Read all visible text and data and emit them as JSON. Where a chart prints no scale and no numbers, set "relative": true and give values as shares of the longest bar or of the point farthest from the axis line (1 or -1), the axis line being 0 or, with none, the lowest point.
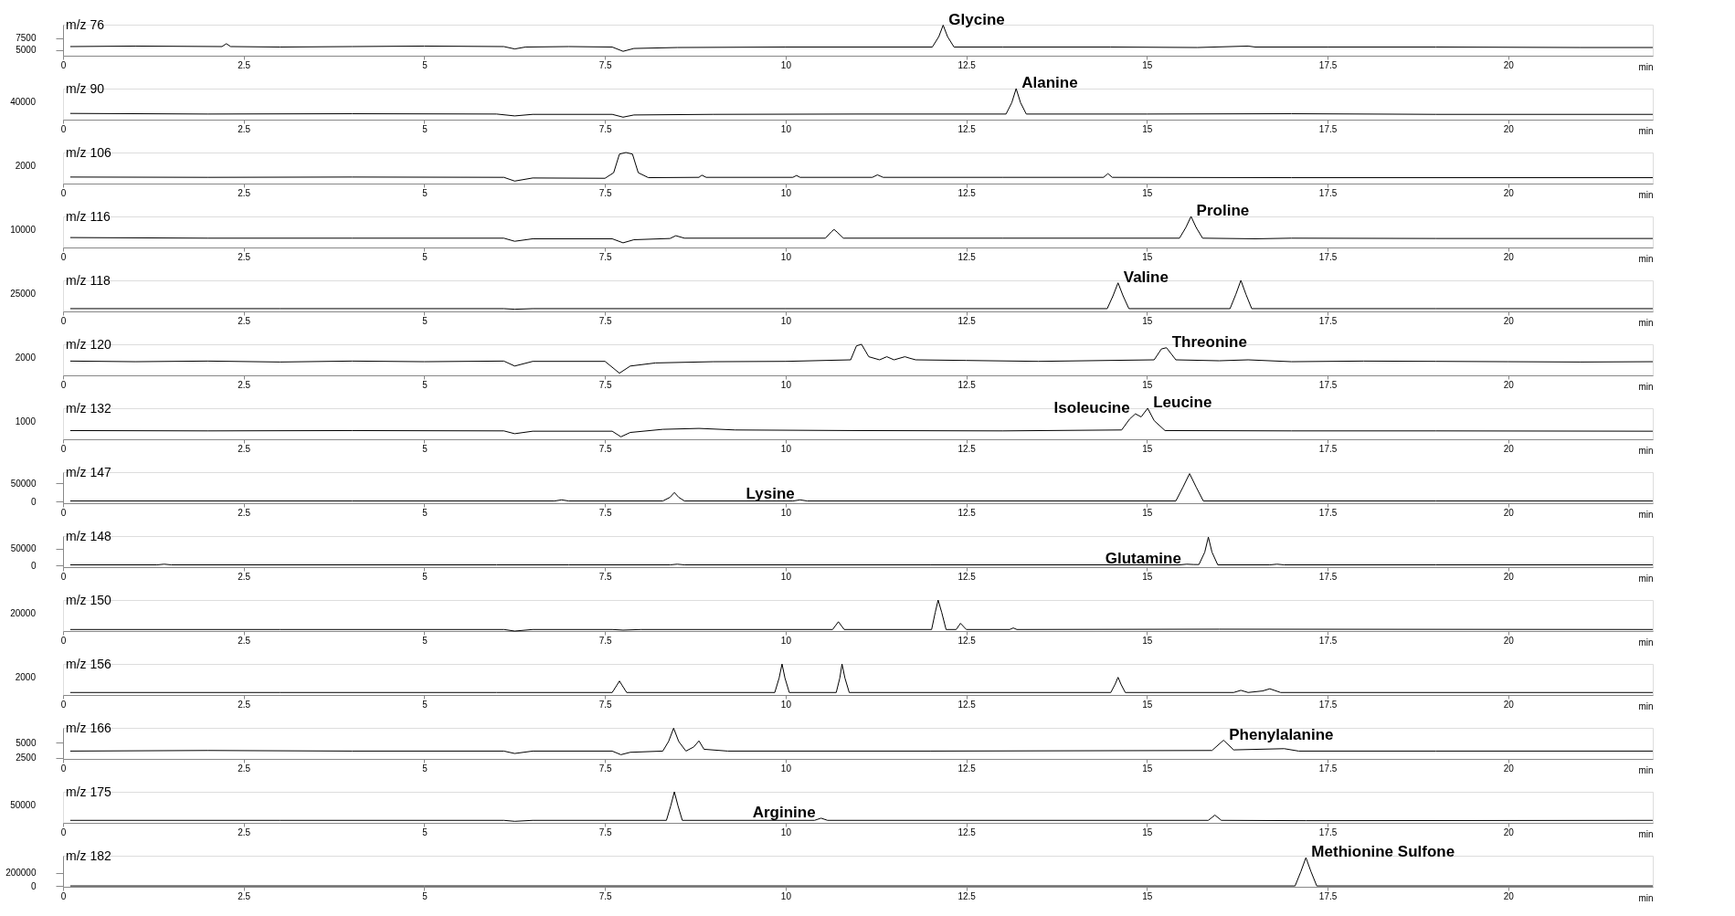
{
  "chart_data": [
    {
      "type": "line",
      "title": "m/z 76",
      "xlabel": "min",
      "color": "#000000",
      "xlim": [
        0,
        22
      ],
      "xticks": [
        0,
        2.5,
        5,
        7.5,
        10,
        12.5,
        15,
        17.5,
        20
      ],
      "ylim": [
        3780,
        10300
      ],
      "yticks": [
        5000,
        7500
      ],
      "x": [
        0.1,
        1,
        2.2,
        2.26,
        2.32,
        3,
        4,
        5,
        6.1,
        6.25,
        6.4,
        7,
        7.6,
        7.75,
        7.9,
        8.5,
        10,
        12.03,
        12.12,
        12.18,
        12.24,
        12.33,
        13,
        14.5,
        15.7,
        16.4,
        16.5,
        17.5,
        19,
        21,
        22
      ],
      "values": [
        5700,
        5800,
        5700,
        6300,
        5700,
        5600,
        5700,
        5800,
        5700,
        5200,
        5600,
        5700,
        5600,
        4700,
        5300,
        5500,
        5600,
        5600,
        7800,
        10200,
        7800,
        5600,
        5600,
        5600,
        5500,
        5800,
        5600,
        5600,
        5600,
        5500,
        5500
      ],
      "annotations": [
        {
          "text": "Glycine",
          "x": 12.18,
          "y": 10200
        }
      ]
    },
    {
      "type": "line",
      "title": "m/z 90",
      "xlabel": "min",
      "color": "#000000",
      "xlim": [
        0,
        22
      ],
      "xticks": [
        0,
        2.5,
        5,
        7.5,
        10,
        12.5,
        15,
        17.5,
        20
      ],
      "relative": true,
      "x": [
        0.1,
        2,
        4,
        6,
        6.25,
        6.5,
        7.6,
        7.75,
        7.9,
        9,
        11,
        13.05,
        13.13,
        13.19,
        13.25,
        13.33,
        15,
        17,
        19,
        22
      ],
      "values": [
        0.2,
        0.18,
        0.19,
        0.18,
        0.12,
        0.17,
        0.17,
        0.08,
        0.15,
        0.17,
        0.18,
        0.18,
        0.55,
        1.0,
        0.55,
        0.18,
        0.18,
        0.19,
        0.17,
        0.17
      ],
      "annotations": [
        "40000",
        {
          "text": "Alanine",
          "x": 13.19,
          "y": 1.0
        }
      ]
    },
    {
      "type": "line",
      "title": "m/z 106",
      "xlabel": "min",
      "color": "#000000",
      "xlim": [
        0,
        22
      ],
      "xticks": [
        0,
        2.5,
        5,
        7.5,
        10,
        12.5,
        15,
        17.5,
        20
      ],
      "relative": true,
      "x": [
        0.1,
        2,
        4,
        6.1,
        6.25,
        6.5,
        7.5,
        7.62,
        7.7,
        7.79,
        7.88,
        7.96,
        8.1,
        8.8,
        8.84,
        8.9,
        10.1,
        10.15,
        10.2,
        11.2,
        11.27,
        11.35,
        13,
        14.4,
        14.46,
        14.52,
        17,
        22
      ],
      "values": [
        0.21,
        0.2,
        0.21,
        0.2,
        0.08,
        0.18,
        0.17,
        0.35,
        0.95,
        1.0,
        0.95,
        0.35,
        0.19,
        0.2,
        0.27,
        0.2,
        0.2,
        0.26,
        0.2,
        0.2,
        0.28,
        0.2,
        0.2,
        0.2,
        0.32,
        0.2,
        0.19,
        0.19
      ],
      "annotations": [
        "2000"
      ]
    },
    {
      "type": "line",
      "title": "m/z 116",
      "xlabel": "min",
      "color": "#000000",
      "xlim": [
        0,
        22
      ],
      "xticks": [
        0,
        2.5,
        5,
        7.5,
        10,
        12.5,
        15,
        17.5,
        20
      ],
      "relative": true,
      "x": [
        0.1,
        2,
        4,
        6.1,
        6.25,
        6.5,
        7.6,
        7.75,
        7.9,
        8.4,
        8.48,
        8.6,
        10.55,
        10.63,
        10.67,
        10.71,
        10.8,
        13,
        15.45,
        15.54,
        15.61,
        15.68,
        15.77,
        16.5,
        17,
        19,
        22
      ],
      "values": [
        0.32,
        0.3,
        0.3,
        0.3,
        0.2,
        0.28,
        0.28,
        0.15,
        0.25,
        0.29,
        0.38,
        0.3,
        0.3,
        0.5,
        0.58,
        0.5,
        0.3,
        0.3,
        0.3,
        0.65,
        1.0,
        0.65,
        0.3,
        0.28,
        0.3,
        0.29,
        0.29
      ],
      "annotations": [
        "10000",
        {
          "text": "Proline",
          "x": 15.61,
          "y": 1.0
        }
      ]
    },
    {
      "type": "line",
      "title": "m/z 118",
      "xlabel": "min",
      "color": "#000000",
      "xlim": [
        0,
        22
      ],
      "xticks": [
        0,
        2.5,
        5,
        7.5,
        10,
        12.5,
        15,
        17.5,
        20
      ],
      "relative": true,
      "x": [
        0.1,
        3,
        6.1,
        6.25,
        6.5,
        10,
        14.45,
        14.53,
        14.6,
        14.67,
        14.75,
        16.15,
        16.23,
        16.3,
        16.37,
        16.45,
        19,
        22
      ],
      "values": [
        0.09,
        0.09,
        0.09,
        0.07,
        0.09,
        0.09,
        0.09,
        0.5,
        0.92,
        0.5,
        0.09,
        0.09,
        0.55,
        1.0,
        0.55,
        0.09,
        0.09,
        0.09
      ],
      "annotations": [
        "25000",
        {
          "text": "Valine",
          "x": 14.6,
          "y": 0.92
        }
      ]
    },
    {
      "type": "line",
      "title": "m/z 120",
      "xlabel": "min",
      "color": "#000000",
      "xlim": [
        0,
        22
      ],
      "xticks": [
        0,
        2.5,
        5,
        7.5,
        10,
        12.5,
        15,
        17.5,
        20
      ],
      "relative": true,
      "x": [
        0.1,
        1,
        2,
        3,
        4,
        5,
        6.1,
        6.25,
        6.5,
        7.5,
        7.7,
        7.85,
        8.2,
        9,
        10,
        10.9,
        10.98,
        11.05,
        11.15,
        11.3,
        11.4,
        11.5,
        11.65,
        11.72,
        11.8,
        12.5,
        13.5,
        15.1,
        15.2,
        15.27,
        15.4,
        16,
        16.4,
        17,
        18,
        19,
        20,
        21,
        22
      ],
      "values": [
        0.46,
        0.44,
        0.46,
        0.43,
        0.46,
        0.44,
        0.46,
        0.3,
        0.45,
        0.45,
        0.07,
        0.3,
        0.4,
        0.44,
        0.45,
        0.5,
        0.95,
        1.0,
        0.6,
        0.5,
        0.6,
        0.5,
        0.6,
        0.55,
        0.5,
        0.48,
        0.45,
        0.5,
        0.85,
        0.89,
        0.5,
        0.47,
        0.5,
        0.44,
        0.46,
        0.45,
        0.44,
        0.43,
        0.44
      ],
      "annotations": [
        "2000",
        {
          "text": "Threonine",
          "x": 15.27,
          "y": 0.89
        }
      ]
    },
    {
      "type": "line",
      "title": "m/z 132",
      "xlabel": "min",
      "color": "#000000",
      "xlim": [
        0,
        22
      ],
      "xticks": [
        0,
        2.5,
        5,
        7.5,
        10,
        12.5,
        15,
        17.5,
        20
      ],
      "relative": true,
      "x": [
        0.1,
        2,
        4,
        6.1,
        6.25,
        6.5,
        7.6,
        7.72,
        7.85,
        8.3,
        8.8,
        9.3,
        11,
        13,
        14.65,
        14.76,
        14.84,
        14.92,
        15.01,
        15.1,
        15.25,
        17,
        19,
        22
      ],
      "values": [
        0.28,
        0.27,
        0.28,
        0.27,
        0.18,
        0.26,
        0.26,
        0.08,
        0.22,
        0.32,
        0.35,
        0.3,
        0.28,
        0.27,
        0.3,
        0.65,
        0.82,
        0.72,
        1.0,
        0.6,
        0.28,
        0.27,
        0.27,
        0.26
      ],
      "annotations": [
        "1000",
        {
          "text": "Isoleucine",
          "x": 14.84,
          "y": 0.82
        },
        {
          "text": "Leucine",
          "x": 15.01,
          "y": 1.0
        }
      ]
    },
    {
      "type": "line",
      "title": "m/z 147",
      "xlabel": "min",
      "color": "#000000",
      "xlim": [
        0,
        22
      ],
      "xticks": [
        0,
        2.5,
        5,
        7.5,
        10,
        12.5,
        15,
        17.5,
        20
      ],
      "ylim": [
        -4000,
        80000
      ],
      "yticks": [
        0,
        50000
      ],
      "x": [
        0.1,
        4,
        6.8,
        6.9,
        7.0,
        8.3,
        8.4,
        8.46,
        8.52,
        8.6,
        10.1,
        10.2,
        10.3,
        15.4,
        15.5,
        15.59,
        15.68,
        15.78,
        19,
        22
      ],
      "values": [
        2000,
        2000,
        2000,
        5000,
        2000,
        2000,
        12000,
        25000,
        12000,
        2000,
        2000,
        5000,
        2000,
        2000,
        40000,
        76000,
        40000,
        2000,
        2000,
        2000
      ],
      "annotations": [
        {
          "text": "Lysine",
          "x": 10.2,
          "y": 5000
        }
      ]
    },
    {
      "type": "line",
      "title": "m/z 148",
      "xlabel": "min",
      "color": "#000000",
      "xlim": [
        0,
        22
      ],
      "xticks": [
        0,
        2.5,
        5,
        7.5,
        10,
        12.5,
        15,
        17.5,
        20
      ],
      "ylim": [
        -4800,
        88000
      ],
      "yticks": [
        0,
        50000
      ],
      "x": [
        0.1,
        1.3,
        1.4,
        1.5,
        6,
        7,
        8.4,
        8.5,
        8.6,
        12,
        15.45,
        15.55,
        15.65,
        15.72,
        15.8,
        15.85,
        15.9,
        15.98,
        16.7,
        16.8,
        16.9,
        19,
        22
      ],
      "values": [
        2000,
        2000,
        4000,
        2000,
        2000,
        2000,
        2000,
        4000,
        2000,
        2000,
        2000,
        4000,
        3000,
        3000,
        40000,
        85000,
        40000,
        2000,
        2000,
        4000,
        2000,
        2000,
        2000
      ],
      "annotations": [
        {
          "text": "Glutamine",
          "x": 15.55,
          "y": 4000
        }
      ]
    },
    {
      "type": "line",
      "title": "m/z 150",
      "xlabel": "min",
      "color": "#000000",
      "xlim": [
        0,
        22
      ],
      "xticks": [
        0,
        2.5,
        5,
        7.5,
        10,
        12.5,
        15,
        17.5,
        20
      ],
      "relative": true,
      "x": [
        0.1,
        3,
        6.1,
        6.25,
        6.5,
        7.6,
        7.75,
        8,
        10.65,
        10.73,
        10.81,
        12.02,
        12.07,
        12.11,
        12.16,
        12.22,
        12.36,
        12.42,
        12.5,
        13.1,
        13.15,
        13.2,
        16,
        22
      ],
      "values": [
        0.05,
        0.05,
        0.05,
        0.0,
        0.05,
        0.05,
        0.03,
        0.05,
        0.05,
        0.3,
        0.05,
        0.05,
        0.6,
        1.0,
        0.6,
        0.05,
        0.05,
        0.25,
        0.05,
        0.05,
        0.1,
        0.05,
        0.06,
        0.05
      ],
      "annotations": [
        "20000"
      ]
    },
    {
      "type": "line",
      "title": "m/z 156",
      "xlabel": "min",
      "color": "#000000",
      "xlim": [
        0,
        22
      ],
      "xticks": [
        0,
        2.5,
        5,
        7.5,
        10,
        12.5,
        15,
        17.5,
        20
      ],
      "relative": true,
      "x": [
        0.1,
        3,
        6,
        7.6,
        7.66,
        7.7,
        7.74,
        7.8,
        9.85,
        9.91,
        9.95,
        9.99,
        10.05,
        10.7,
        10.75,
        10.78,
        10.82,
        10.88,
        14.5,
        14.56,
        14.6,
        14.64,
        14.7,
        16.2,
        16.3,
        16.4,
        16.6,
        16.7,
        16.85,
        22
      ],
      "values": [
        0.08,
        0.08,
        0.08,
        0.08,
        0.3,
        0.45,
        0.3,
        0.08,
        0.08,
        0.55,
        1.0,
        0.55,
        0.08,
        0.08,
        0.55,
        1.0,
        0.55,
        0.08,
        0.08,
        0.35,
        0.57,
        0.35,
        0.08,
        0.08,
        0.15,
        0.08,
        0.13,
        0.2,
        0.08,
        0.08
      ],
      "annotations": [
        "2000"
      ]
    },
    {
      "type": "line",
      "title": "m/z 166",
      "xlabel": "min",
      "color": "#000000",
      "xlim": [
        0,
        22
      ],
      "xticks": [
        0,
        2.5,
        5,
        7.5,
        10,
        12.5,
        15,
        17.5,
        20
      ],
      "ylim": [
        2300,
        7450
      ],
      "yticks": [
        2500,
        5000
      ],
      "x": [
        0.1,
        2,
        4,
        6.1,
        6.25,
        6.5,
        7.6,
        7.72,
        7.85,
        8.3,
        8.38,
        8.45,
        8.52,
        8.62,
        8.73,
        8.8,
        8.87,
        9.2,
        12,
        15.9,
        16.06,
        16.2,
        16.9,
        17.1,
        19,
        22
      ],
      "values": [
        3600,
        3700,
        3600,
        3600,
        3200,
        3600,
        3600,
        3000,
        3400,
        3600,
        5200,
        7400,
        5200,
        3600,
        4300,
        5300,
        3900,
        3600,
        3600,
        3700,
        5400,
        3800,
        4000,
        3600,
        3600,
        3600
      ],
      "annotations": [
        {
          "text": "Phenylalanine",
          "x": 16.06,
          "y": 5400
        }
      ]
    },
    {
      "type": "line",
      "title": "m/z 175",
      "xlabel": "min",
      "color": "#000000",
      "xlim": [
        0,
        22
      ],
      "xticks": [
        0,
        2.5,
        5,
        7.5,
        10,
        12.5,
        15,
        17.5,
        20
      ],
      "relative": true,
      "x": [
        0.1,
        3,
        6.1,
        6.25,
        6.5,
        8.35,
        8.41,
        8.46,
        8.51,
        8.57,
        10.4,
        10.49,
        10.58,
        15.85,
        15.94,
        16.03,
        17.2,
        22
      ],
      "values": [
        0.08,
        0.08,
        0.08,
        0.05,
        0.08,
        0.08,
        0.55,
        1.0,
        0.55,
        0.08,
        0.08,
        0.15,
        0.08,
        0.08,
        0.25,
        0.08,
        0.07,
        0.08
      ],
      "annotations": [
        "50000",
        {
          "text": "Arginine",
          "x": 10.49,
          "y": 0.15
        }
      ]
    },
    {
      "type": "line",
      "title": "m/z 182",
      "xlabel": "min",
      "color": "#000000",
      "xlim": [
        0,
        22
      ],
      "xticks": [
        0,
        2.5,
        5,
        7.5,
        10,
        12.5,
        15,
        17.5,
        20
      ],
      "ylim": [
        -10000,
        460000
      ],
      "yticks": [
        0,
        200000
      ],
      "x": [
        0.1,
        5,
        10,
        17.05,
        17.13,
        17.2,
        17.27,
        17.35,
        22
      ],
      "values": [
        3000,
        3000,
        3000,
        3000,
        220000,
        431000,
        220000,
        3000,
        3000
      ],
      "annotations": [
        {
          "text": "Methionine Sulfone",
          "x": 17.2,
          "y": 431000
        }
      ]
    }
  ]
}
